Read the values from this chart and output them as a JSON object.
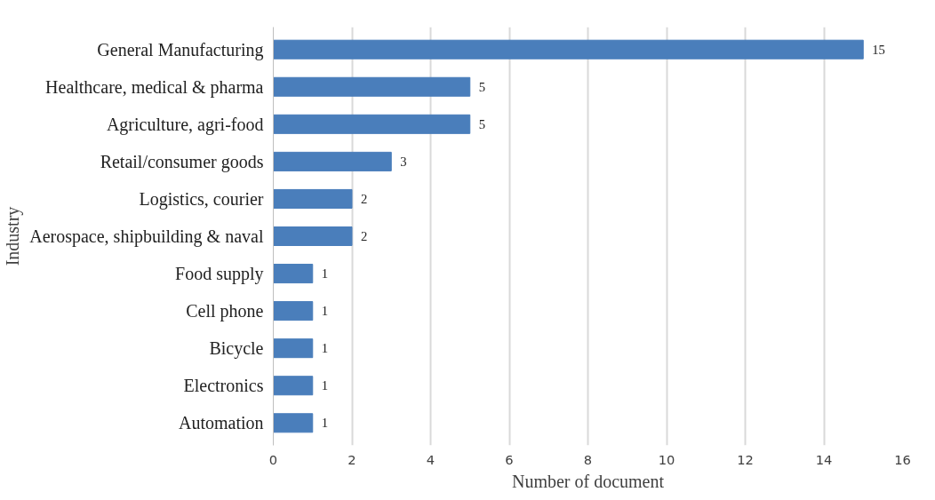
{
  "chart_data": {
    "type": "bar",
    "orientation": "horizontal",
    "xlabel": "Number of document",
    "ylabel": "Industry",
    "categories": [
      "General Manufacturing",
      "Healthcare, medical & pharma",
      "Agriculture, agri-food",
      "Retail/consumer goods",
      "Logistics, courier",
      "Aerospace, shipbuilding & naval",
      "Food supply",
      "Cell phone",
      "Bicycle",
      "Electronics",
      "Automation"
    ],
    "values": [
      15,
      5,
      5,
      3,
      2,
      2,
      1,
      1,
      1,
      1,
      1
    ],
    "color": "#4a7ebb",
    "xlim": [
      0,
      16
    ],
    "xticks": [
      0,
      2,
      4,
      6,
      8,
      10,
      12,
      14,
      16
    ],
    "grid": "x",
    "data_labels": true
  }
}
